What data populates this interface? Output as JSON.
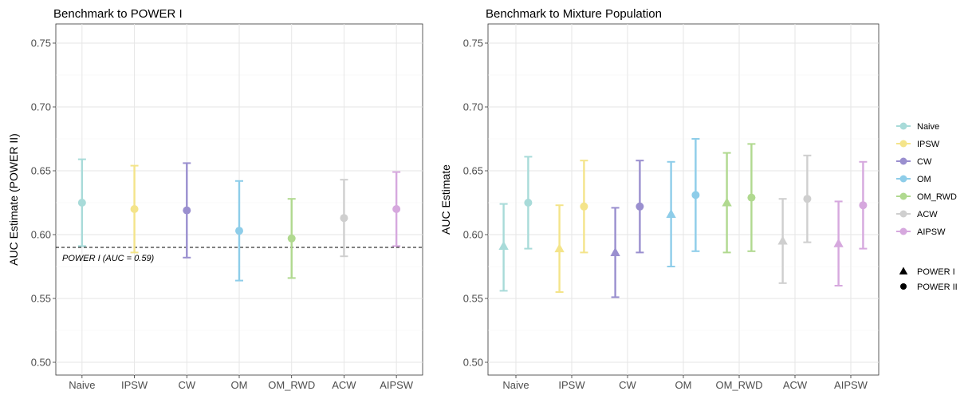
{
  "legend": {
    "methods": [
      "Naive",
      "IPSW",
      "CW",
      "OM",
      "OM_RWD",
      "ACW",
      "AIPSW"
    ],
    "colors": [
      "#a8dbd9",
      "#f4e48a",
      "#9a8fcf",
      "#8ecde9",
      "#b0d98f",
      "#cfcfcf",
      "#d6a8de"
    ],
    "shapes": [
      {
        "label": "POWER I",
        "shape": "triangle"
      },
      {
        "label": "POWER II",
        "shape": "circle"
      }
    ]
  },
  "chart_data": [
    {
      "type": "scatter",
      "title": "Benchmark to POWER I",
      "xlabel": "",
      "ylabel": "AUC Estimate (POWER II)",
      "categories": [
        "Naive",
        "IPSW",
        "CW",
        "OM",
        "OM_RWD",
        "ACW",
        "AIPSW"
      ],
      "ylim": [
        0.49,
        0.765
      ],
      "yticks": [
        "0.50",
        "0.55",
        "0.60",
        "0.65",
        "0.70",
        "0.75"
      ],
      "grid": true,
      "reference_line": {
        "y": 0.59,
        "label": "POWER I (AUC = 0.59)"
      },
      "series": [
        {
          "name": "POWER II",
          "shape": "circle",
          "estimate": [
            0.625,
            0.62,
            0.619,
            0.603,
            0.597,
            0.613,
            0.62
          ],
          "lower": [
            0.591,
            0.586,
            0.582,
            0.564,
            0.566,
            0.583,
            0.591
          ],
          "upper": [
            0.659,
            0.654,
            0.656,
            0.642,
            0.628,
            0.643,
            0.649
          ]
        }
      ]
    },
    {
      "type": "scatter",
      "title": "Benchmark to Mixture Population",
      "xlabel": "",
      "ylabel": "AUC Estimate",
      "categories": [
        "Naive",
        "IPSW",
        "CW",
        "OM",
        "OM_RWD",
        "ACW",
        "AIPSW"
      ],
      "ylim": [
        0.49,
        0.765
      ],
      "yticks": [
        "0.50",
        "0.55",
        "0.60",
        "0.65",
        "0.70",
        "0.75"
      ],
      "grid": true,
      "legend_position": "right",
      "series": [
        {
          "name": "POWER I",
          "shape": "triangle",
          "estimate": [
            0.591,
            0.589,
            0.586,
            0.616,
            0.625,
            0.595,
            0.593
          ],
          "lower": [
            0.556,
            0.555,
            0.551,
            0.575,
            0.586,
            0.562,
            0.56
          ],
          "upper": [
            0.624,
            0.623,
            0.621,
            0.657,
            0.664,
            0.628,
            0.626
          ]
        },
        {
          "name": "POWER II",
          "shape": "circle",
          "estimate": [
            0.625,
            0.622,
            0.622,
            0.631,
            0.629,
            0.628,
            0.623
          ],
          "lower": [
            0.589,
            0.586,
            0.586,
            0.587,
            0.587,
            0.594,
            0.589
          ],
          "upper": [
            0.661,
            0.658,
            0.658,
            0.675,
            0.671,
            0.662,
            0.657
          ]
        }
      ]
    }
  ]
}
